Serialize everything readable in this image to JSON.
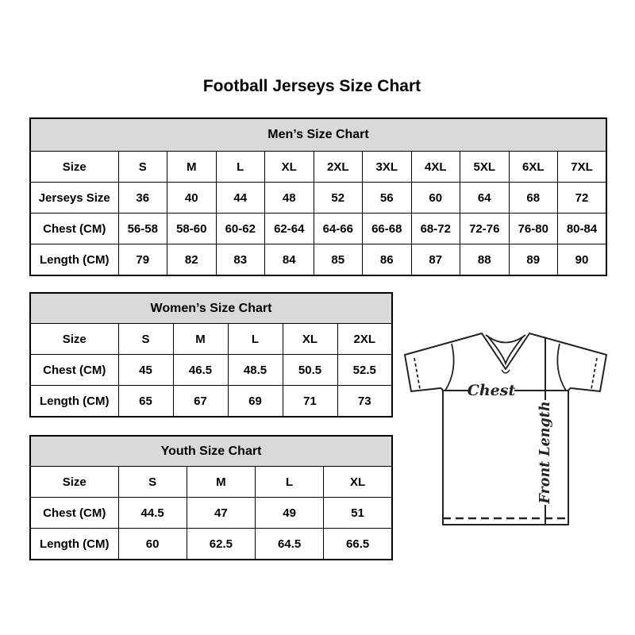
{
  "page": {
    "title": "Football Jerseys Size Chart"
  },
  "tables": [
    {
      "id": "mens",
      "title": "Men’s Size Chart",
      "rows": [
        [
          "Size",
          "S",
          "M",
          "L",
          "XL",
          "2XL",
          "3XL",
          "4XL",
          "5XL",
          "6XL",
          "7XL"
        ],
        [
          "Jerseys Size",
          "36",
          "40",
          "44",
          "48",
          "52",
          "56",
          "60",
          "64",
          "68",
          "72"
        ],
        [
          "Chest (CM)",
          "56-58",
          "58-60",
          "60-62",
          "62-64",
          "64-66",
          "66-68",
          "68-72",
          "72-76",
          "76-80",
          "80-84"
        ],
        [
          "Length (CM)",
          "79",
          "82",
          "83",
          "84",
          "85",
          "86",
          "87",
          "88",
          "89",
          "90"
        ]
      ]
    },
    {
      "id": "womens",
      "title": "Women’s Size Chart",
      "rows": [
        [
          "Size",
          "S",
          "M",
          "L",
          "XL",
          "2XL"
        ],
        [
          "Chest (CM)",
          "45",
          "46.5",
          "48.5",
          "50.5",
          "52.5"
        ],
        [
          "Length (CM)",
          "65",
          "67",
          "69",
          "71",
          "73"
        ]
      ]
    },
    {
      "id": "youth",
      "title": "Youth Size Chart",
      "rows": [
        [
          "Size",
          "S",
          "M",
          "L",
          "XL"
        ],
        [
          "Chest (CM)",
          "44.5",
          "47",
          "49",
          "51"
        ],
        [
          "Length (CM)",
          "60",
          "62.5",
          "64.5",
          "66.5"
        ]
      ]
    }
  ],
  "diagram": {
    "chest_label": "Chest",
    "front_length_label": "Front Length"
  },
  "colors": {
    "table_header_bg": "#d9d9d9",
    "table_border": "#000000",
    "diagram_stroke": "#262220"
  }
}
